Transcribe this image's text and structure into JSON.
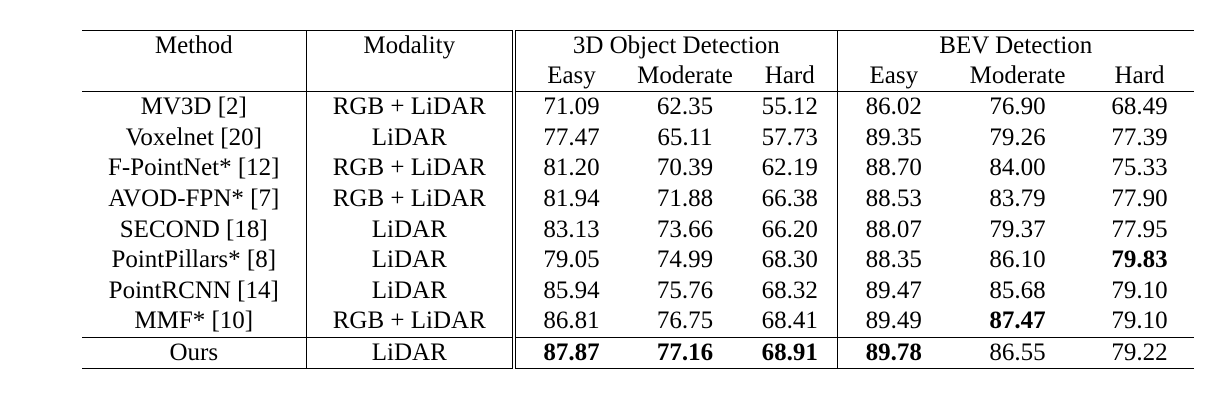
{
  "headers": {
    "method": "Method",
    "modality": "Modality",
    "group_3d": "3D Object Detection",
    "group_bev": "BEV Detection",
    "easy": "Easy",
    "moderate": "Moderate",
    "hard": "Hard"
  },
  "rows": [
    {
      "method": "MV3D [2]",
      "modality": "RGB + LiDAR",
      "d3_easy": "71.09",
      "d3_mod": "62.35",
      "d3_hard": "55.12",
      "bev_easy": "86.02",
      "bev_mod": "76.90",
      "bev_hard": "68.49"
    },
    {
      "method": "Voxelnet [20]",
      "modality": "LiDAR",
      "d3_easy": "77.47",
      "d3_mod": "65.11",
      "d3_hard": "57.73",
      "bev_easy": "89.35",
      "bev_mod": "79.26",
      "bev_hard": "77.39"
    },
    {
      "method": "F-PointNet* [12]",
      "modality": "RGB + LiDAR",
      "d3_easy": "81.20",
      "d3_mod": "70.39",
      "d3_hard": "62.19",
      "bev_easy": "88.70",
      "bev_mod": "84.00",
      "bev_hard": "75.33"
    },
    {
      "method": "AVOD-FPN* [7]",
      "modality": "RGB + LiDAR",
      "d3_easy": "81.94",
      "d3_mod": "71.88",
      "d3_hard": "66.38",
      "bev_easy": "88.53",
      "bev_mod": "83.79",
      "bev_hard": "77.90"
    },
    {
      "method": "SECOND [18]",
      "modality": "LiDAR",
      "d3_easy": "83.13",
      "d3_mod": "73.66",
      "d3_hard": "66.20",
      "bev_easy": "88.07",
      "bev_mod": "79.37",
      "bev_hard": "77.95"
    },
    {
      "method": "PointPillars* [8]",
      "modality": "LiDAR",
      "d3_easy": "79.05",
      "d3_mod": "74.99",
      "d3_hard": "68.30",
      "bev_easy": "88.35",
      "bev_mod": "86.10",
      "bev_hard": "79.83"
    },
    {
      "method": "PointRCNN [14]",
      "modality": "LiDAR",
      "d3_easy": "85.94",
      "d3_mod": "75.76",
      "d3_hard": "68.32",
      "bev_easy": "89.47",
      "bev_mod": "85.68",
      "bev_hard": "79.10"
    },
    {
      "method": "MMF* [10]",
      "modality": "RGB + LiDAR",
      "d3_easy": "86.81",
      "d3_mod": "76.75",
      "d3_hard": "68.41",
      "bev_easy": "89.49",
      "bev_mod": "87.47",
      "bev_hard": "79.10"
    },
    {
      "method": "Ours",
      "modality": "LiDAR",
      "d3_easy": "87.87",
      "d3_mod": "77.16",
      "d3_hard": "68.91",
      "bev_easy": "89.78",
      "bev_mod": "86.55",
      "bev_hard": "79.22"
    }
  ],
  "bold_cells": [
    "5.bev_hard",
    "7.bev_mod",
    "8.d3_easy",
    "8.d3_mod",
    "8.d3_hard",
    "8.bev_easy"
  ]
}
